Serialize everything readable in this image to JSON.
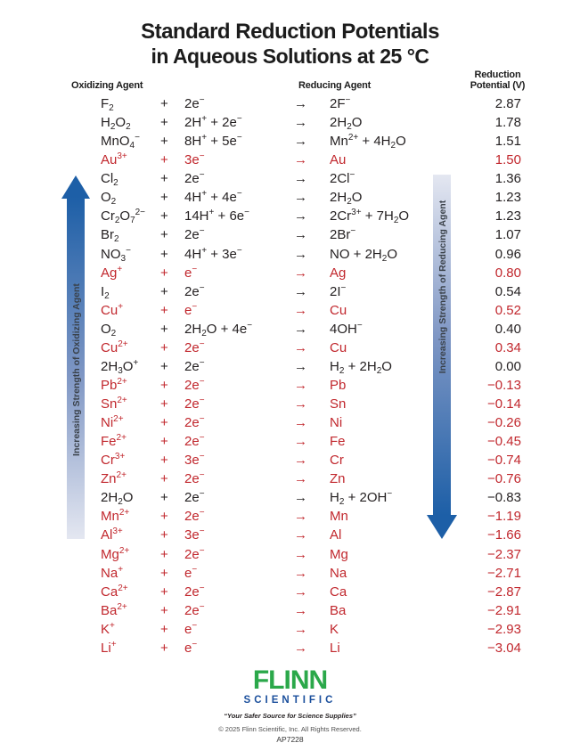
{
  "title": {
    "line1": "Standard Reduction Potentials",
    "line2": "in Aqueous Solutions at 25 °C"
  },
  "headers": {
    "oxidizing": "Oxidizing Agent",
    "reducing": "Reducing Agent",
    "potential_line1": "Reduction",
    "potential_line2": "Potential (V)"
  },
  "symbols": {
    "plus": "+",
    "arrow": "→"
  },
  "colors": {
    "red_text": "#C1272D",
    "black_text": "#231F20",
    "arrow_blue": "#1D5FA7",
    "arrow_light": "#E4E7F1",
    "flinn_green": "#2BA84A",
    "flinn_blue": "#1B4F9C"
  },
  "arrows": {
    "left_label": "Increasing Strength of Oxidizing Agent",
    "right_label": "Increasing Strength of Reducing Agent"
  },
  "rows": [
    {
      "ox": "F_{2}",
      "mid": "2e^{−}",
      "prod": "2F^{−}",
      "pot": "2.87",
      "c": "black"
    },
    {
      "ox": "H_{2}O_{2}",
      "mid": "2H^{+} + 2e^{−}",
      "prod": "2H_{2}O",
      "pot": "1.78",
      "c": "black"
    },
    {
      "ox": "MnO_{4}^{−}",
      "mid": "8H^{+} + 5e^{−}",
      "prod": "Mn^{2+} + 4H_{2}O",
      "pot": "1.51",
      "c": "black"
    },
    {
      "ox": "Au^{3+}",
      "mid": "3e^{−}",
      "prod": "Au",
      "pot": "1.50",
      "c": "red"
    },
    {
      "ox": "Cl_{2}",
      "mid": "2e^{−}",
      "prod": "2Cl^{−}",
      "pot": "1.36",
      "c": "black"
    },
    {
      "ox": "O_{2}",
      "mid": "4H^{+} + 4e^{−}",
      "prod": "2H_{2}O",
      "pot": "1.23",
      "c": "black"
    },
    {
      "ox": "Cr_{2}O_{7}^{2−}",
      "mid": "14H^{+} + 6e^{−}",
      "prod": "2Cr^{3+} + 7H_{2}O",
      "pot": "1.23",
      "c": "black"
    },
    {
      "ox": "Br_{2}",
      "mid": "2e^{−}",
      "prod": "2Br^{−}",
      "pot": "1.07",
      "c": "black"
    },
    {
      "ox": "NO_{3}^{−}",
      "mid": "4H^{+} + 3e^{−}",
      "prod": "NO + 2H_{2}O",
      "pot": "0.96",
      "c": "black"
    },
    {
      "ox": "Ag^{+}",
      "mid": "e^{−}",
      "prod": "Ag",
      "pot": "0.80",
      "c": "red"
    },
    {
      "ox": "I_{2}",
      "mid": "2e^{−}",
      "prod": "2I^{−}",
      "pot": "0.54",
      "c": "black"
    },
    {
      "ox": "Cu^{+}",
      "mid": "e^{−}",
      "prod": "Cu",
      "pot": "0.52",
      "c": "red"
    },
    {
      "ox": "O_{2}",
      "mid": "2H_{2}O + 4e^{−}",
      "prod": "4OH^{−}",
      "pot": "0.40",
      "c": "black"
    },
    {
      "ox": "Cu^{2+}",
      "mid": "2e^{−}",
      "prod": "Cu",
      "pot": "0.34",
      "c": "red"
    },
    {
      "ox": "2H_{3}O^{+}",
      "mid": "2e^{−}",
      "prod": "H_{2} + 2H_{2}O",
      "pot": "0.00",
      "c": "black"
    },
    {
      "ox": "Pb^{2+}",
      "mid": "2e^{−}",
      "prod": "Pb",
      "pot": "−0.13",
      "c": "red"
    },
    {
      "ox": "Sn^{2+}",
      "mid": "2e^{−}",
      "prod": "Sn",
      "pot": "−0.14",
      "c": "red"
    },
    {
      "ox": "Ni^{2+}",
      "mid": "2e^{−}",
      "prod": "Ni",
      "pot": "−0.26",
      "c": "red"
    },
    {
      "ox": "Fe^{2+}",
      "mid": "2e^{−}",
      "prod": "Fe",
      "pot": "−0.45",
      "c": "red"
    },
    {
      "ox": "Cr^{3+}",
      "mid": "3e^{−}",
      "prod": "Cr",
      "pot": "−0.74",
      "c": "red"
    },
    {
      "ox": "Zn^{2+}",
      "mid": "2e^{−}",
      "prod": "Zn",
      "pot": "−0.76",
      "c": "red"
    },
    {
      "ox": "2H_{2}O",
      "mid": "2e^{−}",
      "prod": "H_{2} + 2OH^{−}",
      "pot": "−0.83",
      "c": "black"
    },
    {
      "ox": "Mn^{2+}",
      "mid": "2e^{−}",
      "prod": "Mn",
      "pot": "−1.19",
      "c": "red"
    },
    {
      "ox": "Al^{3+}",
      "mid": "3e^{−}",
      "prod": "Al",
      "pot": "−1.66",
      "c": "red"
    },
    {
      "ox": "Mg^{2+}",
      "mid": "2e^{−}",
      "prod": "Mg",
      "pot": "−2.37",
      "c": "red"
    },
    {
      "ox": "Na^{+}",
      "mid": "e^{−}",
      "prod": "Na",
      "pot": "−2.71",
      "c": "red"
    },
    {
      "ox": "Ca^{2+}",
      "mid": "2e^{−}",
      "prod": "Ca",
      "pot": "−2.87",
      "c": "red"
    },
    {
      "ox": "Ba^{2+}",
      "mid": "2e^{−}",
      "prod": "Ba",
      "pot": "−2.91",
      "c": "red"
    },
    {
      "ox": "K^{+}",
      "mid": "e^{−}",
      "prod": "K",
      "pot": "−2.93",
      "c": "red"
    },
    {
      "ox": "Li^{+}",
      "mid": "e^{−}",
      "prod": "Li",
      "pot": "−3.04",
      "c": "red"
    }
  ],
  "footer": {
    "brand": "FLINN",
    "brand_sub": "SCIENTIFIC",
    "tagline": "“Your Safer Source for Science Supplies”",
    "copyright": "© 2025 Flinn Scientific, Inc. All Rights Reserved.",
    "catalog": "AP7228"
  }
}
